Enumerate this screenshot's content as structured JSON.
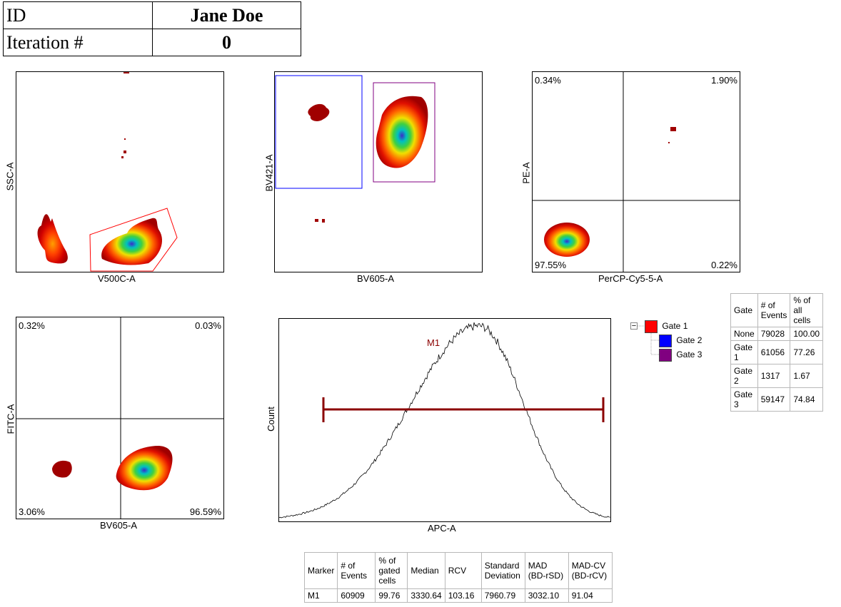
{
  "header": {
    "id_label": "ID",
    "id_value": "Jane Doe",
    "iter_label": "Iteration #",
    "iter_value": "0"
  },
  "plots": {
    "p1": {
      "xlabel": "V500C-A",
      "ylabel": "SSC-A"
    },
    "p2": {
      "xlabel": "BV605-A",
      "ylabel": "BV421-A"
    },
    "p3": {
      "xlabel": "PerCP-Cy5-5-A",
      "ylabel": "PE-A",
      "q_ul": "0.34%",
      "q_ur": "1.90%",
      "q_ll": "97.55%",
      "q_lr": "0.22%"
    },
    "p4": {
      "xlabel": "BV605-A",
      "ylabel": "FITC-A",
      "q_ul": "0.32%",
      "q_ur": "0.03%",
      "q_ll": "3.06%",
      "q_lr": "96.59%"
    },
    "p5": {
      "xlabel": "APC-A",
      "ylabel": "Count",
      "marker": "M1"
    }
  },
  "legend": {
    "items": [
      {
        "label": "Gate 1",
        "color": "#ff0000"
      },
      {
        "label": "Gate 2",
        "color": "#0000ff"
      },
      {
        "label": "Gate 3",
        "color": "#800080"
      }
    ],
    "collapse_symbol": "−"
  },
  "gate_table": {
    "headers": [
      "Gate",
      "# of Events",
      "% of all cells"
    ],
    "rows": [
      [
        "None",
        "79028",
        "100.00"
      ],
      [
        "Gate 1",
        "61056",
        "77.26"
      ],
      [
        "Gate 2",
        "1317",
        "1.67"
      ],
      [
        "Gate 3",
        "59147",
        "74.84"
      ]
    ]
  },
  "marker_table": {
    "headers": [
      "Marker",
      "# of Events",
      "% of gated cells",
      "Median",
      "RCV",
      "Standard Deviation",
      "MAD (BD-rSD)",
      "MAD-CV (BD-rCV)"
    ],
    "rows": [
      [
        "M1",
        "60909",
        "99.76",
        "3330.64",
        "103.16",
        "7960.79",
        "3032.10",
        "91.04"
      ]
    ]
  },
  "colors": {
    "gate1": "#ff0000",
    "gate2": "#0000ff",
    "gate3": "#800080",
    "marker": "#8b0000"
  }
}
